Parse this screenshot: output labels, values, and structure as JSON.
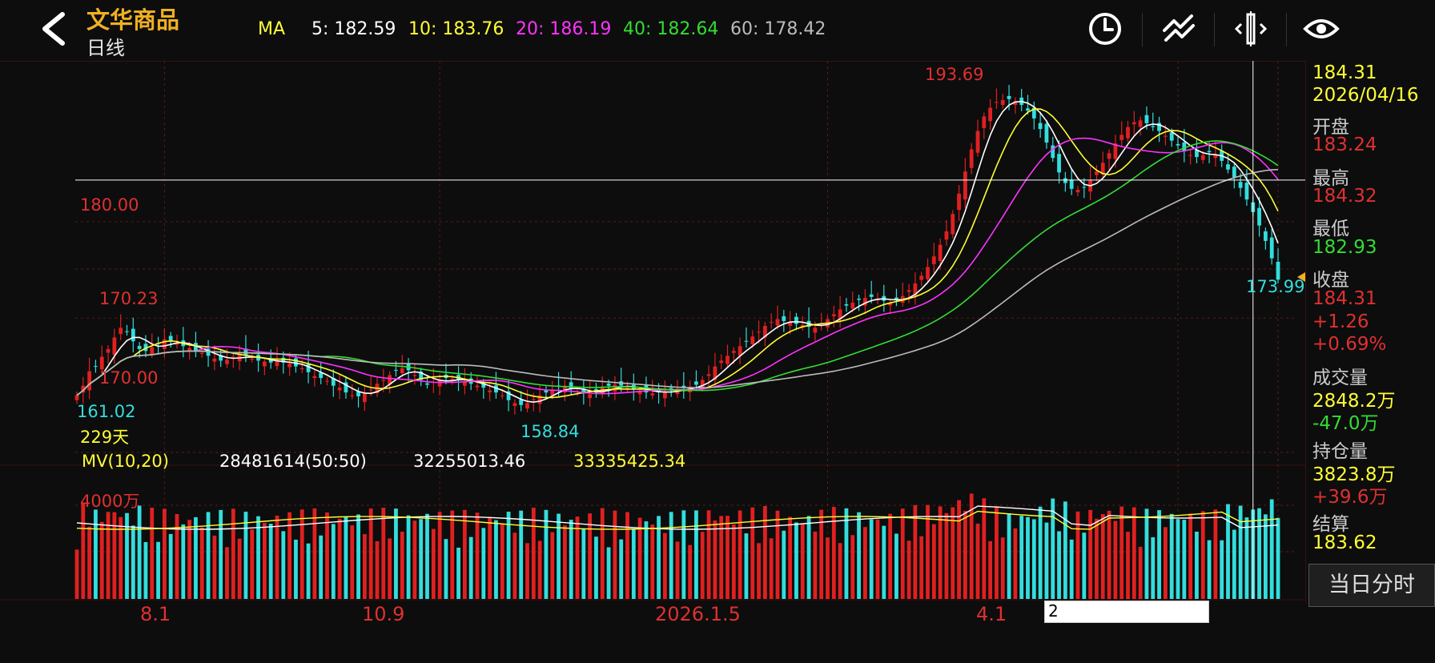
{
  "header": {
    "title": "文华商品",
    "subtitle": "日线",
    "ma_label": "MA",
    "ma": [
      {
        "label": "5: 182.59",
        "color": "#ffffff"
      },
      {
        "label": "10: 183.76",
        "color": "#ffff33"
      },
      {
        "label": "20: 186.19",
        "color": "#ff33ff"
      },
      {
        "label": "40: 182.64",
        "color": "#33dd33"
      },
      {
        "label": "60: 178.42",
        "color": "#bbbbbb"
      }
    ],
    "icons": [
      "clock-icon",
      "draw-line-icon",
      "zoom-adjust-icon",
      "eye-icon"
    ]
  },
  "chart_data": {
    "type": "candlestick",
    "title": "文华商品 日线",
    "price_tick_labels": [
      "180.00",
      "170.00"
    ],
    "price_ylim": [
      157,
      196
    ],
    "annotations": {
      "high": "193.69",
      "low": "158.84",
      "left_high": "170.23",
      "left_low": "161.02",
      "last": "173.99"
    },
    "days_label": "229天",
    "x_tick_labels": [
      "8.1",
      "10.9",
      "2026.1.5",
      "4.1"
    ],
    "x_tick_index": [
      14,
      58,
      120,
      176
    ],
    "crosshair_index": 188,
    "crosshair_price": 184.31,
    "crosshair_date_label": "2",
    "closes": [
      162,
      163,
      164.5,
      165,
      166,
      166.8,
      168,
      169,
      168.6,
      167.6,
      166.8,
      166.6,
      167,
      167.4,
      167.8,
      167.6,
      167.4,
      167.1,
      166.9,
      166.6,
      166.4,
      166.1,
      165.8,
      165.6,
      165.7,
      166,
      166.3,
      166.1,
      165.8,
      165.6,
      165.5,
      165.4,
      165.6,
      165.4,
      165.3,
      165,
      164.8,
      164.4,
      164,
      163.8,
      163.5,
      163,
      162.8,
      162.3,
      162,
      161.9,
      162.2,
      162.6,
      163.2,
      163.6,
      164.1,
      164.6,
      164.8,
      164.6,
      164.1,
      163.6,
      163.1,
      163.4,
      163.6,
      163.8,
      163.7,
      163.6,
      163.4,
      163.2,
      163,
      162.8,
      162.5,
      162.3,
      162,
      161.5,
      161.2,
      161,
      161.2,
      161.6,
      162,
      162.3,
      162.6,
      162.9,
      163,
      162.7,
      162.4,
      162.2,
      162.1,
      162.4,
      162.8,
      163,
      163.1,
      163,
      162.8,
      162.6,
      162.5,
      162.3,
      162.2,
      162.3,
      162.4,
      162.5,
      162.7,
      162.8,
      162.9,
      163.1,
      163.6,
      164.2,
      165,
      165.6,
      166.1,
      166.6,
      167.1,
      167.6,
      168.1,
      168.6,
      169.2,
      169.6,
      169.9,
      169.7,
      169.6,
      169.4,
      169.3,
      169.1,
      169,
      169.4,
      169.9,
      170.4,
      170.9,
      171.3,
      171.6,
      171.9,
      172.1,
      172.2,
      172,
      171.8,
      171.6,
      171.9,
      172.3,
      172.9,
      173.6,
      174.4,
      175.3,
      176.4,
      177.6,
      179,
      180.8,
      182.9,
      185.2,
      187.5,
      189.4,
      190.9,
      191.8,
      192.4,
      192.6,
      192.7,
      192.5,
      192.1,
      191.5,
      190.7,
      189.6,
      188.2,
      186.6,
      185.1,
      184,
      183.4,
      183.3,
      183.6,
      184.3,
      185.2,
      186.1,
      187.1,
      188.1,
      189,
      189.8,
      190.3,
      190.5,
      190.2,
      189.8,
      189.4,
      188.9,
      188.4,
      187.9,
      187.3,
      186.9,
      186.7,
      186.9,
      187.2,
      187,
      186.3,
      185.4,
      184.6,
      183.5,
      182.3,
      181,
      179.6,
      178,
      176.2,
      173.99
    ],
    "opens_offset": [
      -0.6,
      0.5,
      -0.8,
      0.9,
      -0.5,
      0.7,
      -1,
      0.6
    ],
    "volume": {
      "title": "MV(10,20)",
      "values_label": [
        "28481614(50:50)",
        "32255013.46",
        "33335425.34"
      ],
      "tick_label": "4000万"
    }
  },
  "side": {
    "price": "184.31",
    "date": "2026/04/16",
    "open_label": "开盘",
    "open": "183.24",
    "high_label": "最高",
    "high": "184.32",
    "low_label": "最低",
    "low": "182.93",
    "close_label": "收盘",
    "close": "184.31",
    "change": "+1.26",
    "change_pct": "+0.69%",
    "volume_label": "成交量",
    "volume": "2848.2万",
    "volume_change": "-47.0万",
    "oi_label": "持仓量",
    "oi": "3823.8万",
    "oi_change": "+39.6万",
    "settle_label": "结算",
    "settle": "183.62",
    "intraday_button": "当日分时"
  }
}
